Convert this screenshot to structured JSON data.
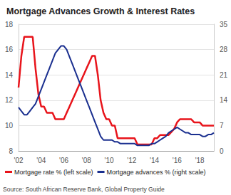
{
  "chart_data": {
    "type": "line",
    "title": "Mortgage Advances Growth & Interest Rates",
    "source": "Source: South African Reserve Bank, Global Property Guide",
    "categories": [
      "'02",
      null,
      null,
      null,
      null,
      null,
      null,
      null,
      "'04",
      null,
      null,
      null,
      null,
      null,
      null,
      null,
      "'06",
      null,
      null,
      null,
      null,
      null,
      null,
      null,
      "'08",
      null,
      null,
      null,
      null,
      null,
      null,
      null,
      "'10",
      null,
      null,
      null,
      null,
      null,
      null,
      null,
      "'12",
      null,
      null,
      null,
      null,
      null,
      null,
      null,
      "'14",
      null,
      null,
      null,
      null,
      null,
      null,
      null,
      "'16",
      null,
      null,
      null,
      null,
      null,
      null,
      null,
      "'18",
      null,
      null,
      null,
      null,
      null
    ],
    "series": [
      {
        "name": "Mortgage rate % (left scale)",
        "color": "#e8141b",
        "values": [
          13,
          15.5,
          17,
          17,
          17,
          17,
          14.5,
          12.5,
          11.5,
          11.5,
          11,
          11,
          11,
          10.5,
          10.5,
          10.5,
          10.5,
          11,
          11.5,
          12,
          12.5,
          13,
          13.5,
          14,
          14.5,
          15,
          15.5,
          15.5,
          14,
          12,
          11,
          10.5,
          10.5,
          10,
          10,
          9,
          9,
          9,
          9,
          9,
          9,
          9,
          8.5,
          8.5,
          8.5,
          8.5,
          8.5,
          8.5,
          9,
          9,
          9.25,
          9.25,
          9.25,
          9.25,
          9.5,
          9.75,
          10.25,
          10.5,
          10.5,
          10.5,
          10.5,
          10.5,
          10.25,
          10.25,
          10.25,
          10,
          10,
          10,
          10,
          10
        ]
      },
      {
        "name": "Mortgage advances % (right scale)",
        "color": "#1a2f8f",
        "axis": "y2",
        "values": [
          12,
          11,
          10,
          10,
          11,
          12,
          13,
          15,
          17,
          19,
          21,
          23,
          25,
          27,
          28,
          29,
          29,
          28,
          26,
          24,
          22,
          20,
          18,
          16,
          14,
          12,
          10,
          8,
          6,
          4,
          3,
          3,
          3,
          3,
          2.5,
          2.5,
          2,
          2,
          2,
          2,
          2,
          2,
          1.5,
          1.5,
          1.5,
          1.5,
          1.5,
          2,
          2,
          2.5,
          3,
          3.5,
          4,
          5,
          5.5,
          6,
          6.5,
          6,
          5.5,
          5,
          5,
          4.5,
          4.5,
          4.5,
          4.5,
          4,
          4,
          4.5,
          4.5,
          5
        ]
      }
    ],
    "ylim": [
      8,
      18
    ],
    "yticks": [
      8,
      10,
      12,
      14,
      16,
      18
    ],
    "y2lim": [
      0,
      35
    ],
    "y2ticks": [
      0,
      7,
      14,
      21,
      28,
      35
    ],
    "grid": true,
    "legend": "bottom"
  }
}
